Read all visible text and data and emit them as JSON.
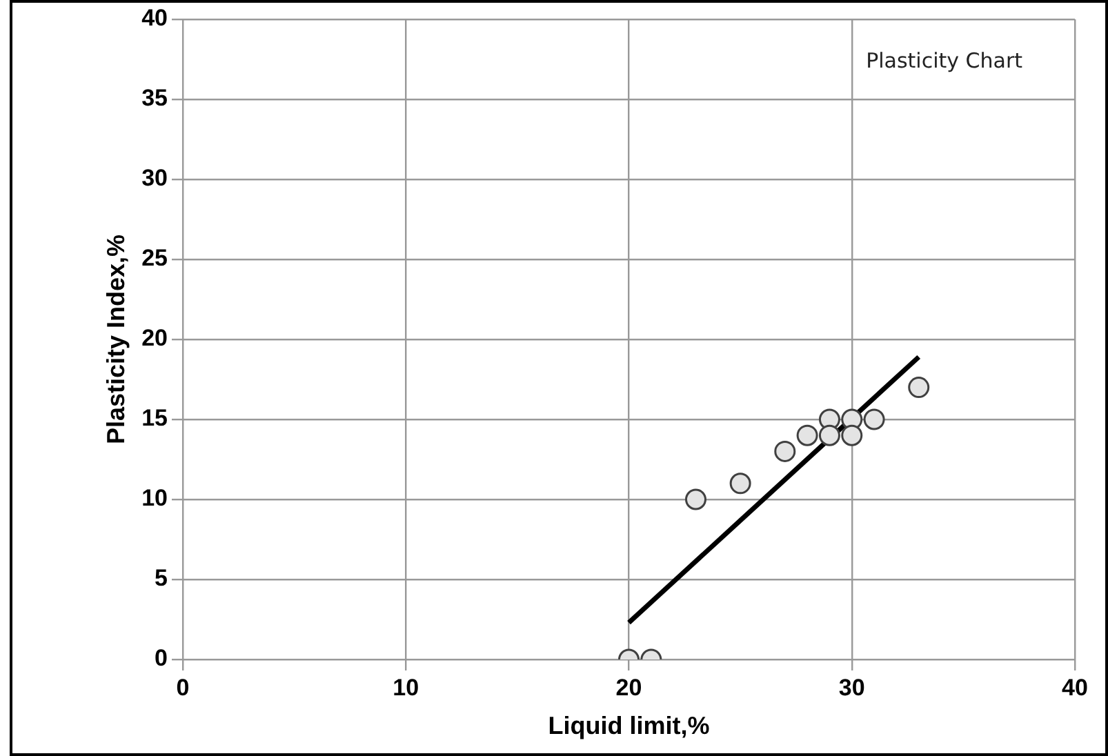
{
  "chart_data": {
    "type": "scatter",
    "title": "Plasticity Chart",
    "xlabel": "Liquid limit,%",
    "ylabel": "Plasticity Index,%",
    "xlim": [
      0,
      40
    ],
    "xticks": [
      0,
      10,
      20,
      30,
      40
    ],
    "ylim": [
      0,
      40
    ],
    "yticks": [
      0,
      5,
      10,
      15,
      20,
      25,
      30,
      35,
      40
    ],
    "grid": true,
    "legend": false,
    "series": [
      {
        "marker": "circle",
        "color": "#404040",
        "x": [
          20,
          21,
          23,
          25,
          27,
          28,
          29,
          29,
          30,
          30,
          31,
          33
        ],
        "values": [
          0,
          0,
          10,
          11,
          13,
          14,
          15,
          14,
          15,
          14,
          15,
          17
        ]
      },
      {
        "type": "line",
        "marker": "none",
        "color": "#000000",
        "x": [
          20,
          33
        ],
        "values": [
          2.3,
          18.9
        ]
      }
    ]
  }
}
